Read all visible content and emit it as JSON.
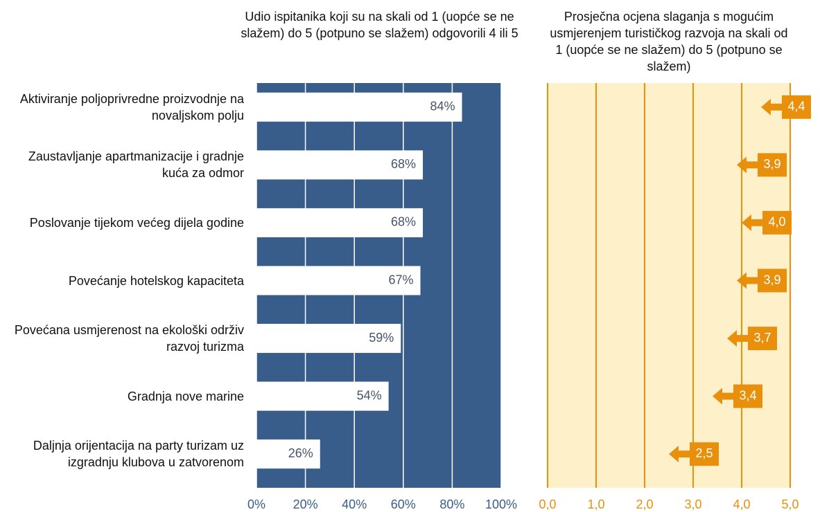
{
  "chart_data": [
    {
      "type": "bar",
      "orientation": "horizontal",
      "title": "Udio ispitanika koji su na skali od 1 (uopće se ne slažem) do 5 (potpuno se slažem) odgovorili 4 ili 5",
      "categories": [
        "Aktiviranje poljoprivredne proizvodnje na novaljskom polju",
        "Zaustavljanje apartmanizacije i gradnje kuća za odmor",
        "Poslovanje tijekom većeg dijela godine",
        "Povećanje hotelskog kapaciteta",
        "Povećana usmjerenost na ekološki održiv razvoj turizma",
        "Gradnja nove marine",
        "Daljnja orijentacija na party turizam uz izgradnju klubova u zatvorenom"
      ],
      "values": [
        84,
        68,
        68,
        67,
        59,
        54,
        26
      ],
      "value_labels": [
        "84%",
        "68%",
        "68%",
        "67%",
        "59%",
        "54%",
        "26%"
      ],
      "color": "#ffffff",
      "background": "#385d8a",
      "grid": true,
      "xlim": [
        0,
        100
      ],
      "xticks": [
        {
          "value": 0,
          "label": "0%"
        },
        {
          "value": 20,
          "label": "20%"
        },
        {
          "value": 40,
          "label": "40%"
        },
        {
          "value": 60,
          "label": "60%"
        },
        {
          "value": 80,
          "label": "80%"
        },
        {
          "value": 100,
          "label": "100%"
        }
      ]
    },
    {
      "type": "arrow",
      "title": "Prosječna ocjena slaganja s mogućim usmjerenjem turističkog razvoja na skali od 1 (uopće se ne slažem) do 5 (potpuno se slažem)",
      "values": [
        4.4,
        3.9,
        4.0,
        3.9,
        3.7,
        3.4,
        2.5
      ],
      "value_labels": [
        "4,4",
        "3,9",
        "4,0",
        "3,9",
        "3,7",
        "3,4",
        "2,5"
      ],
      "color": "#e8900c",
      "background": "#fef0c8",
      "grid": true,
      "xlim": [
        0,
        5
      ],
      "xticks": [
        {
          "value": 0,
          "label": "0,0"
        },
        {
          "value": 1,
          "label": "1,0"
        },
        {
          "value": 2,
          "label": "2,0"
        },
        {
          "value": 3,
          "label": "3,0"
        },
        {
          "value": 4,
          "label": "4,0"
        },
        {
          "value": 5,
          "label": "5,0"
        }
      ]
    }
  ]
}
